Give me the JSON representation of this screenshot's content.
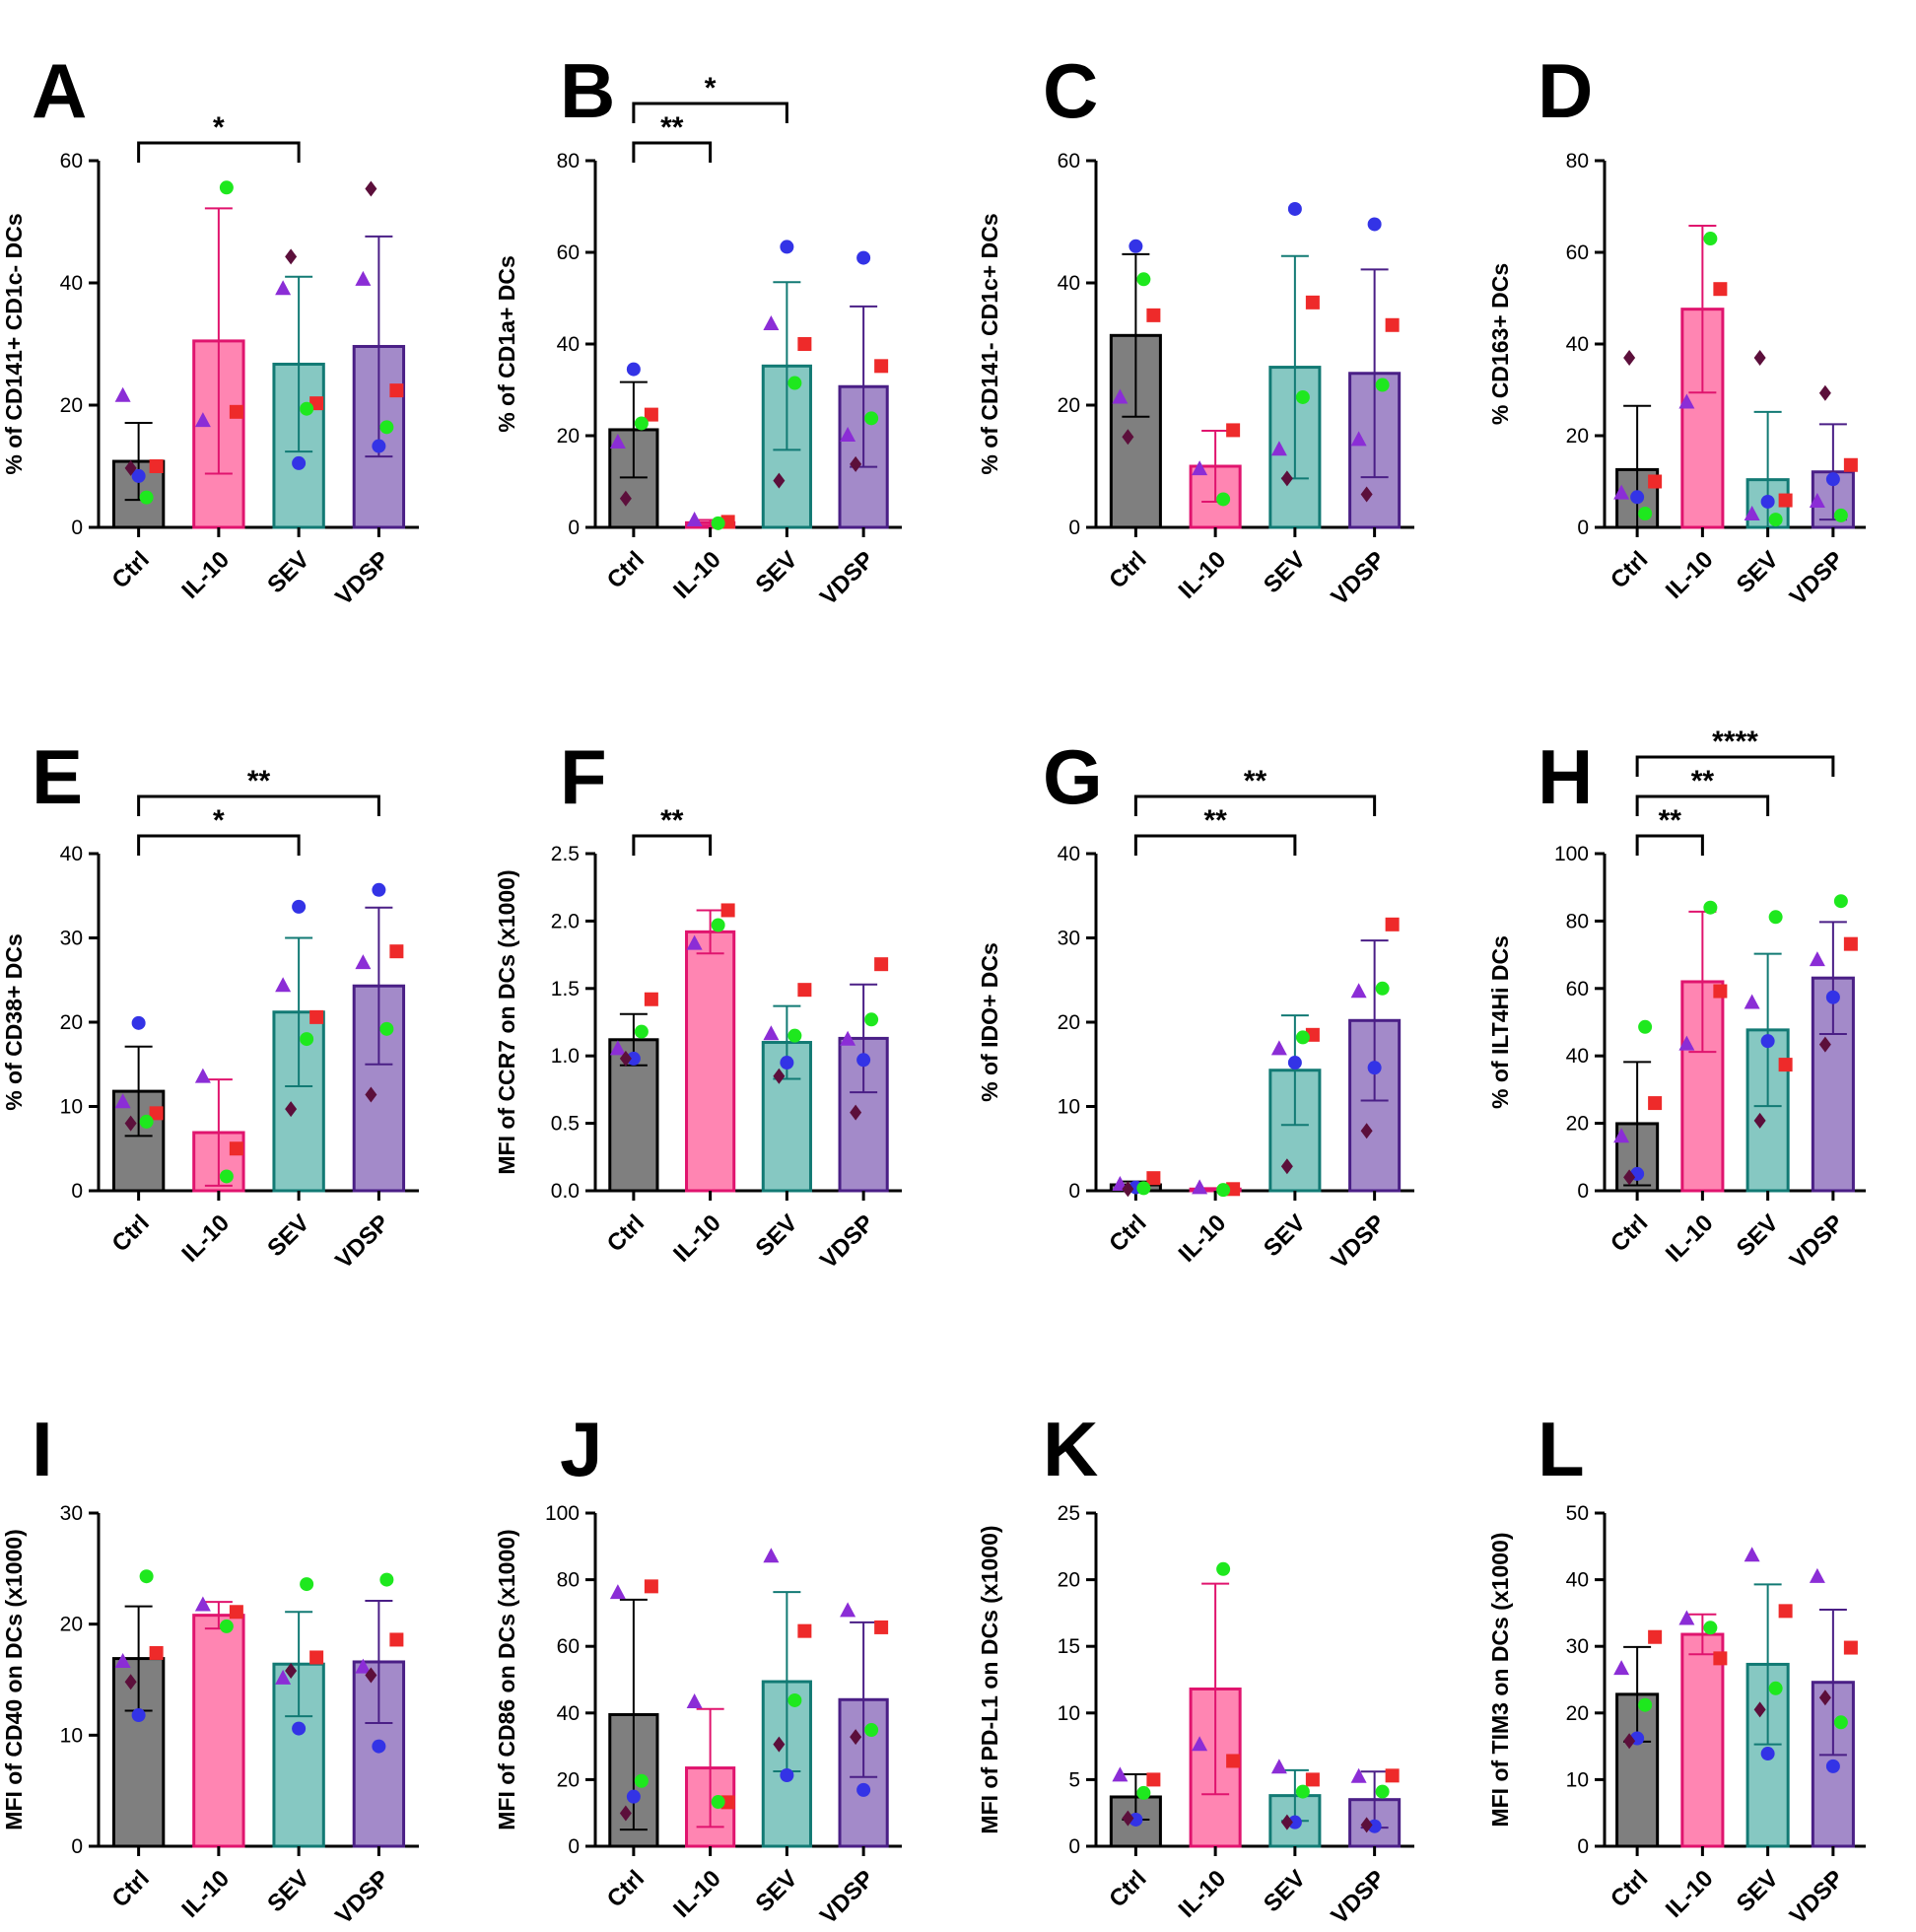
{
  "figure": {
    "categories": [
      "Ctrl",
      "IL-10",
      "SEV",
      "VDSP"
    ],
    "colors": {
      "bars": [
        "#7f7f7f",
        "#ff85b2",
        "#86c8c2",
        "#a38ac9"
      ],
      "outlines": [
        "#000000",
        "#e0146e",
        "#127a74",
        "#4a1f86"
      ],
      "donors": [
        "#8b2dd6",
        "#3333e6",
        "#ee2a2a",
        "#1ee81e",
        "#5c0f3b"
      ],
      "donor_shapes": [
        "triangle",
        "circle",
        "square",
        "circle",
        "diamond"
      ]
    }
  },
  "chart_data": [
    {
      "panel": "A",
      "type": "bar",
      "ylabel": "% of CD141+ CD1c- DCs",
      "ylim": [
        0,
        60
      ],
      "yticks": [
        "0",
        "20",
        "40",
        "60"
      ],
      "categories": [
        "Ctrl",
        "IL-10",
        "SEV",
        "VDSP"
      ],
      "means": [
        10.8,
        30.5,
        26.7,
        29.6
      ],
      "errors": [
        6.3,
        21.7,
        14.3,
        18.0
      ],
      "points": [
        [
          21.5,
          8.4,
          10.0,
          4.9,
          9.7
        ],
        [
          17.4,
          null,
          18.9,
          55.6,
          null
        ],
        [
          39.0,
          10.5,
          20.3,
          19.4,
          44.3
        ],
        [
          40.5,
          13.3,
          22.4,
          16.4,
          55.4
        ]
      ],
      "significance": [
        {
          "from": 0,
          "to": 2,
          "label": "*"
        }
      ]
    },
    {
      "panel": "B",
      "type": "bar",
      "ylabel": "% of CD1a+ DCs",
      "ylim": [
        0,
        80
      ],
      "yticks": [
        "0",
        "20",
        "40",
        "60",
        "80"
      ],
      "categories": [
        "Ctrl",
        "IL-10",
        "SEV",
        "VDSP"
      ],
      "means": [
        21.3,
        1.0,
        35.2,
        30.7
      ],
      "errors": [
        10.4,
        0.6,
        18.3,
        17.5
      ],
      "points": [
        [
          18.5,
          34.5,
          24.6,
          22.7,
          6.3
        ],
        [
          1.5,
          null,
          1.2,
          0.9,
          null
        ],
        [
          44.3,
          61.2,
          40.0,
          31.5,
          10.2
        ],
        [
          20.0,
          58.8,
          35.2,
          23.8,
          13.8
        ]
      ],
      "significance": [
        {
          "from": 0,
          "to": 1,
          "label": "**"
        },
        {
          "from": 0,
          "to": 2,
          "label": "*"
        }
      ]
    },
    {
      "panel": "C",
      "type": "bar",
      "ylabel": "% of CD141- CD1c+ DCs",
      "ylim": [
        0,
        60
      ],
      "yticks": [
        "0",
        "20",
        "40",
        "60"
      ],
      "categories": [
        "Ctrl",
        "IL-10",
        "SEV",
        "VDSP"
      ],
      "means": [
        31.4,
        10.0,
        26.2,
        25.2
      ],
      "errors": [
        13.3,
        5.8,
        18.2,
        17.0
      ],
      "points": [
        [
          21.2,
          46.0,
          34.7,
          40.6,
          14.8
        ],
        [
          9.5,
          null,
          15.9,
          4.6,
          null
        ],
        [
          12.7,
          52.1,
          36.8,
          21.3,
          8.0
        ],
        [
          14.3,
          49.6,
          33.1,
          23.3,
          5.4
        ]
      ],
      "significance": []
    },
    {
      "panel": "D",
      "type": "bar",
      "ylabel": "% CD163+ DCs",
      "ylim": [
        0,
        80
      ],
      "yticks": [
        "0",
        "20",
        "40",
        "60",
        "80"
      ],
      "categories": [
        "Ctrl",
        "IL-10",
        "SEV",
        "VDSP"
      ],
      "means": [
        12.6,
        47.6,
        10.4,
        12.1
      ],
      "errors": [
        13.9,
        18.2,
        14.8,
        10.4
      ],
      "points": [
        [
          7.4,
          6.6,
          10.0,
          3.0,
          37.0
        ],
        [
          27.2,
          null,
          52.0,
          63.0,
          null
        ],
        [
          2.8,
          5.6,
          5.9,
          1.7,
          37.0
        ],
        [
          5.6,
          10.5,
          13.6,
          2.6,
          29.3
        ]
      ],
      "significance": []
    },
    {
      "panel": "E",
      "type": "bar",
      "ylabel": "% of CD38+ DCs",
      "ylim": [
        0,
        40
      ],
      "yticks": [
        "0",
        "10",
        "20",
        "30",
        "40"
      ],
      "categories": [
        "Ctrl",
        "IL-10",
        "SEV",
        "VDSP"
      ],
      "means": [
        11.8,
        6.9,
        21.2,
        24.3
      ],
      "errors": [
        5.3,
        6.3,
        8.8,
        9.3
      ],
      "points": [
        [
          10.5,
          19.9,
          9.2,
          8.2,
          8.0
        ],
        [
          13.5,
          null,
          5.0,
          1.7,
          null
        ],
        [
          24.3,
          33.7,
          20.6,
          18.0,
          9.7
        ],
        [
          27.0,
          35.7,
          28.4,
          19.2,
          11.4
        ]
      ],
      "significance": [
        {
          "from": 0,
          "to": 2,
          "label": "*"
        },
        {
          "from": 0,
          "to": 3,
          "label": "**"
        }
      ]
    },
    {
      "panel": "F",
      "type": "bar",
      "ylabel": "MFI of CCR7 on DCs (x1000)",
      "ylim": [
        0,
        2.5
      ],
      "yticks": [
        "0.0",
        "0.5",
        "1.0",
        "1.5",
        "2.0",
        "2.5"
      ],
      "categories": [
        "Ctrl",
        "IL-10",
        "SEV",
        "VDSP"
      ],
      "means": [
        1.12,
        1.92,
        1.1,
        1.13
      ],
      "errors": [
        0.19,
        0.16,
        0.27,
        0.4
      ],
      "points": [
        [
          1.05,
          0.98,
          1.42,
          1.18,
          0.98
        ],
        [
          1.83,
          null,
          2.08,
          1.97,
          null
        ],
        [
          1.16,
          0.95,
          1.49,
          1.15,
          0.85
        ],
        [
          1.12,
          0.97,
          1.68,
          1.27,
          0.58
        ]
      ],
      "significance": [
        {
          "from": 0,
          "to": 1,
          "label": "**"
        }
      ]
    },
    {
      "panel": "G",
      "type": "bar",
      "ylabel": "% of IDO+ DCs",
      "ylim": [
        0,
        40
      ],
      "yticks": [
        "0",
        "10",
        "20",
        "30",
        "40"
      ],
      "categories": [
        "Ctrl",
        "IL-10",
        "SEV",
        "VDSP"
      ],
      "means": [
        0.7,
        0.2,
        14.3,
        20.2
      ],
      "errors": [
        0.4,
        0.1,
        6.5,
        9.5
      ],
      "points": [
        [
          0.7,
          0.4,
          1.5,
          0.3,
          0.2
        ],
        [
          0.3,
          null,
          0.2,
          0.1,
          null
        ],
        [
          16.8,
          15.2,
          18.5,
          18.2,
          2.9
        ],
        [
          23.6,
          14.6,
          31.6,
          24.0,
          7.1
        ]
      ],
      "significance": [
        {
          "from": 0,
          "to": 2,
          "label": "**"
        },
        {
          "from": 0,
          "to": 3,
          "label": "**"
        }
      ]
    },
    {
      "panel": "H",
      "type": "bar",
      "ylabel": "% of ILT4Hi DCs",
      "ylim": [
        0,
        100
      ],
      "yticks": [
        "0",
        "20",
        "40",
        "60",
        "80",
        "100"
      ],
      "categories": [
        "Ctrl",
        "IL-10",
        "SEV",
        "VDSP"
      ],
      "means": [
        19.9,
        62.0,
        47.7,
        63.1
      ],
      "errors": [
        18.3,
        20.8,
        22.6,
        16.6
      ],
      "points": [
        [
          16.0,
          5.0,
          26.0,
          48.6,
          4.0
        ],
        [
          43.4,
          null,
          59.2,
          84.0,
          null
        ],
        [
          55.7,
          44.4,
          37.4,
          81.2,
          20.8
        ],
        [
          68.4,
          57.4,
          73.2,
          85.9,
          43.4
        ]
      ],
      "significance": [
        {
          "from": 0,
          "to": 1,
          "label": "**"
        },
        {
          "from": 0,
          "to": 2,
          "label": "**"
        },
        {
          "from": 0,
          "to": 3,
          "label": "****"
        }
      ]
    },
    {
      "panel": "I",
      "type": "bar",
      "ylabel": "MFI of CD40 on DCs (x1000)",
      "ylim": [
        0,
        30
      ],
      "yticks": [
        "0",
        "10",
        "20",
        "30"
      ],
      "categories": [
        "Ctrl",
        "IL-10",
        "SEV",
        "VDSP"
      ],
      "means": [
        16.9,
        20.8,
        16.4,
        16.6
      ],
      "errors": [
        4.7,
        1.2,
        4.7,
        5.5
      ],
      "points": [
        [
          16.6,
          11.8,
          17.4,
          24.3,
          14.8
        ],
        [
          21.7,
          null,
          21.1,
          19.8,
          null
        ],
        [
          15.1,
          10.6,
          17.0,
          23.6,
          15.8
        ],
        [
          16.1,
          9.0,
          18.6,
          24.0,
          15.4
        ]
      ],
      "significance": []
    },
    {
      "panel": "J",
      "type": "bar",
      "ylabel": "MFI of CD86 on DCs (x1000)",
      "ylim": [
        0,
        100
      ],
      "yticks": [
        "0",
        "20",
        "40",
        "60",
        "80",
        "100"
      ],
      "categories": [
        "Ctrl",
        "IL-10",
        "SEV",
        "VDSP"
      ],
      "means": [
        39.5,
        23.5,
        49.4,
        44.0
      ],
      "errors": [
        34.5,
        17.7,
        26.9,
        23.2
      ],
      "points": [
        [
          76.0,
          14.9,
          78.0,
          19.6,
          9.9
        ],
        [
          43.2,
          null,
          13.2,
          13.3,
          null
        ],
        [
          86.9,
          21.3,
          64.6,
          43.8,
          30.6
        ],
        [
          70.6,
          16.9,
          65.7,
          34.9,
          32.8
        ]
      ],
      "significance": []
    },
    {
      "panel": "K",
      "type": "bar",
      "ylabel": "MFI of PD-L1 on DCs (x1000)",
      "ylim": [
        0,
        25
      ],
      "yticks": [
        "0",
        "5",
        "10",
        "15",
        "20",
        "25"
      ],
      "categories": [
        "Ctrl",
        "IL-10",
        "SEV",
        "VDSP"
      ],
      "means": [
        3.7,
        11.8,
        3.8,
        3.5
      ],
      "errors": [
        1.7,
        7.9,
        1.9,
        2.1
      ],
      "points": [
        [
          5.3,
          2.0,
          5.0,
          4.0,
          2.1
        ],
        [
          7.6,
          null,
          6.4,
          20.8,
          null
        ],
        [
          5.9,
          1.8,
          5.0,
          4.1,
          1.8
        ],
        [
          5.2,
          1.5,
          5.3,
          4.1,
          1.6
        ]
      ],
      "significance": []
    },
    {
      "panel": "L",
      "type": "bar",
      "ylabel": "MFI of TIM3 on DCs (x1000)",
      "ylim": [
        0,
        50
      ],
      "yticks": [
        "0",
        "10",
        "20",
        "30",
        "40",
        "50"
      ],
      "categories": [
        "Ctrl",
        "IL-10",
        "SEV",
        "VDSP"
      ],
      "means": [
        22.8,
        31.8,
        27.3,
        24.6
      ],
      "errors": [
        7.1,
        3.0,
        12.0,
        10.9
      ],
      "points": [
        [
          26.6,
          16.2,
          31.4,
          21.2,
          15.8
        ],
        [
          34.1,
          null,
          28.2,
          32.8,
          null
        ],
        [
          43.6,
          13.9,
          35.3,
          23.7,
          20.5
        ],
        [
          40.4,
          12.0,
          29.8,
          18.6,
          22.3
        ]
      ],
      "significance": []
    }
  ]
}
